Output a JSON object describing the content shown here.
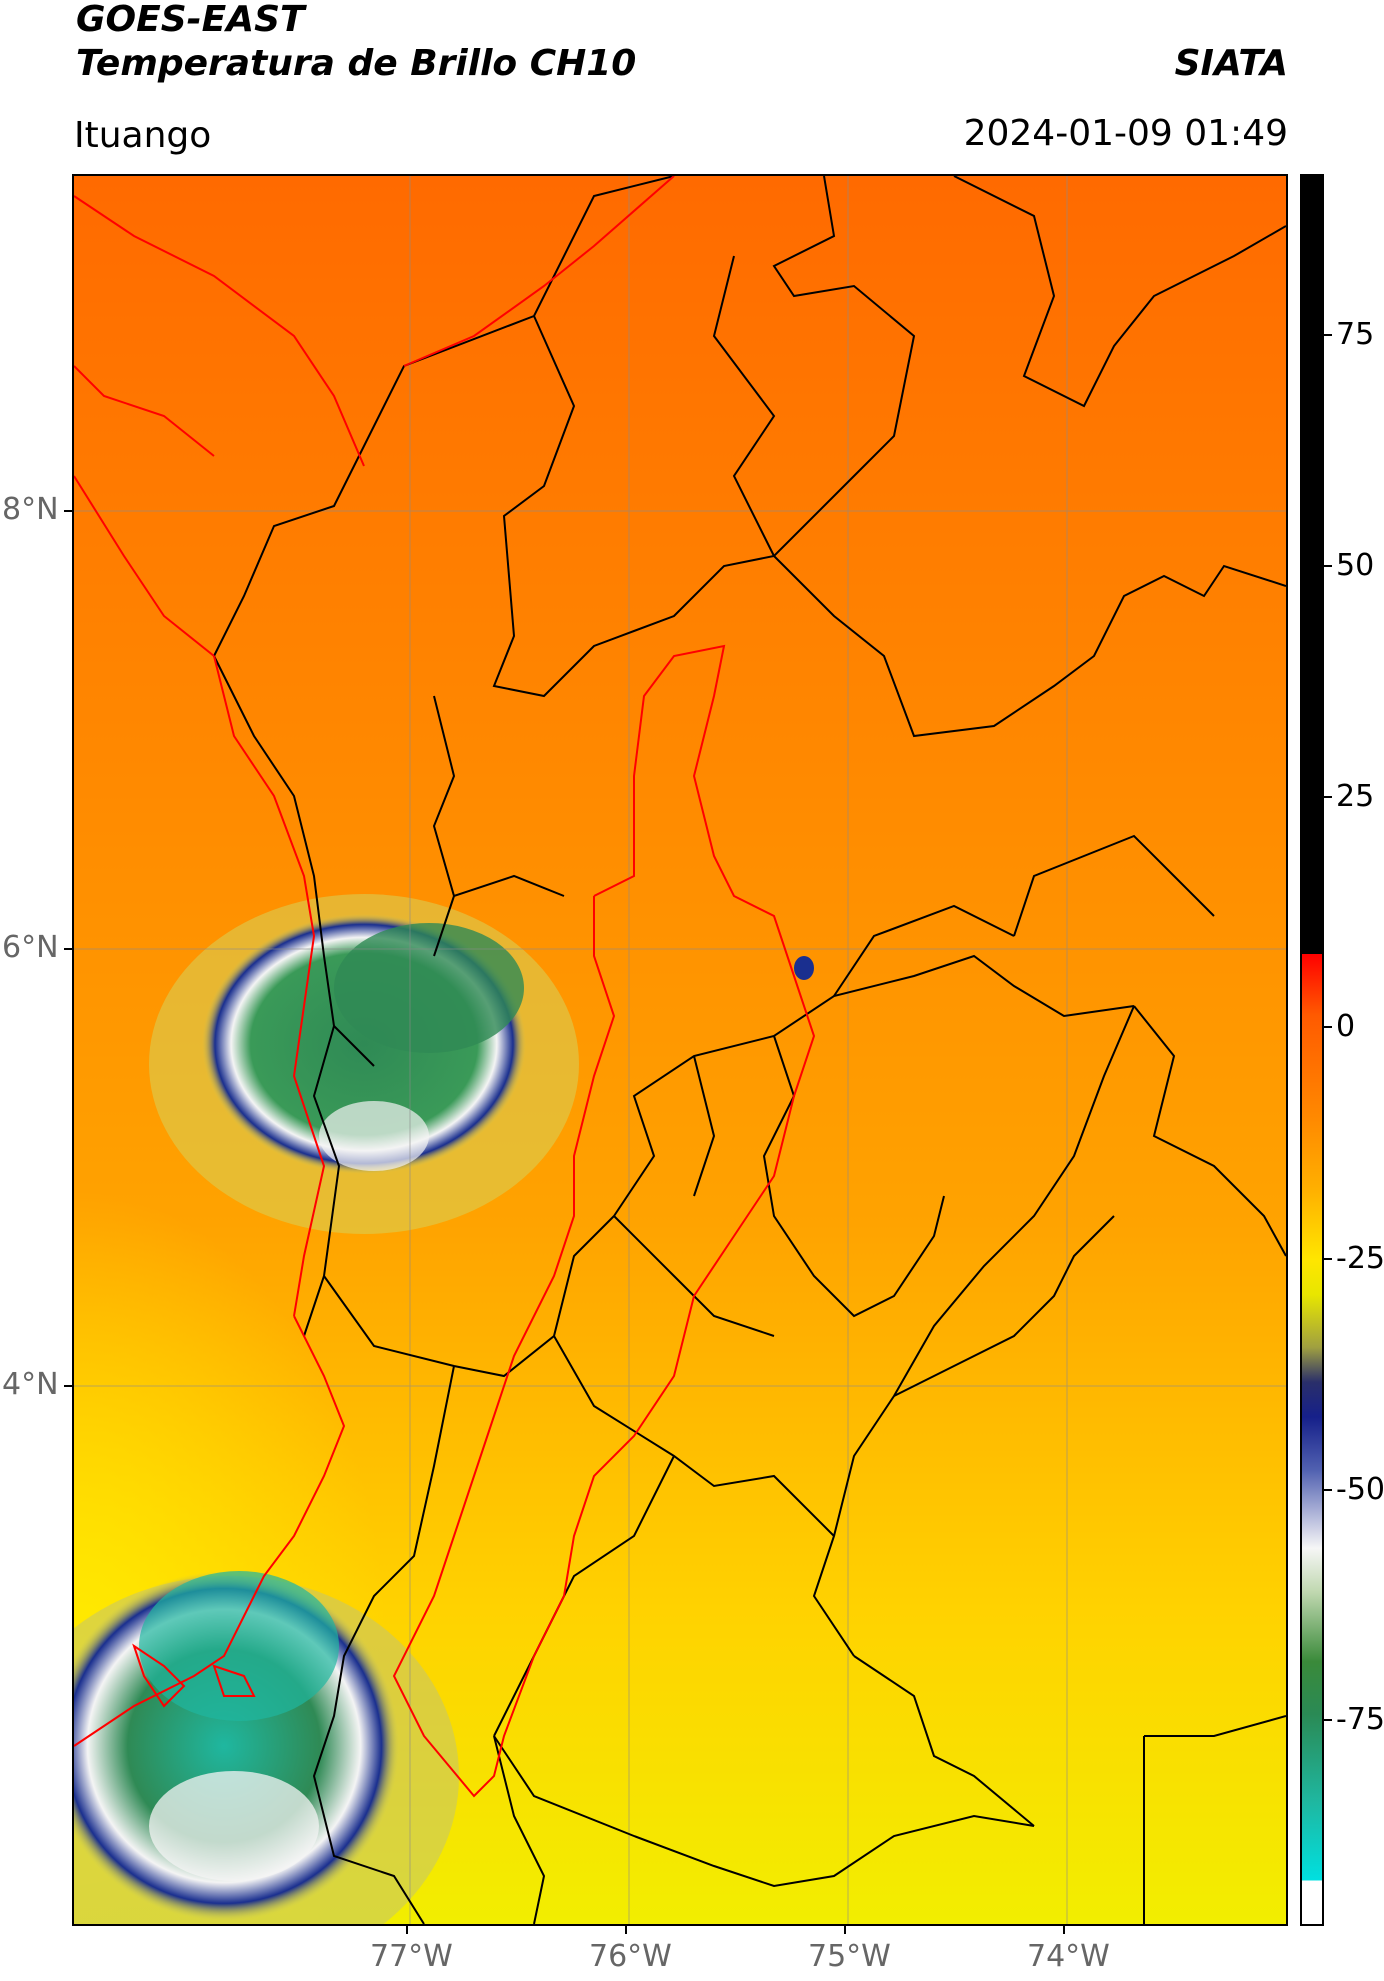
{
  "header": {
    "satellite": "GOES-EAST",
    "product": "Temperatura de Brillo CH10",
    "agency": "SIATA",
    "region": "Ituango",
    "timestamp": "2024-01-09 01:49"
  },
  "map": {
    "lon_ticks": [
      "77°W",
      "76°W",
      "75°W",
      "74°W"
    ],
    "lat_ticks": [
      "8°N",
      "6°N",
      "4°N"
    ],
    "colors": {
      "warm": "#ff7a00",
      "mid": "#ffb000",
      "cool": "#ffe600",
      "cloud_green": "#2f8a55",
      "cloud_teal": "#1fb7a0",
      "cloud_white": "#f4f4f4",
      "cloud_blue": "#1a2f8f",
      "boundary_black": "#000000",
      "boundary_red": "#ff0000"
    }
  },
  "colorbar": {
    "ticks": [
      "75",
      "50",
      "25",
      "0",
      "-25",
      "-50",
      "-75"
    ],
    "tick_values": [
      75,
      50,
      25,
      0,
      -25,
      -50,
      -75
    ],
    "range": [
      -93,
      92
    ]
  }
}
